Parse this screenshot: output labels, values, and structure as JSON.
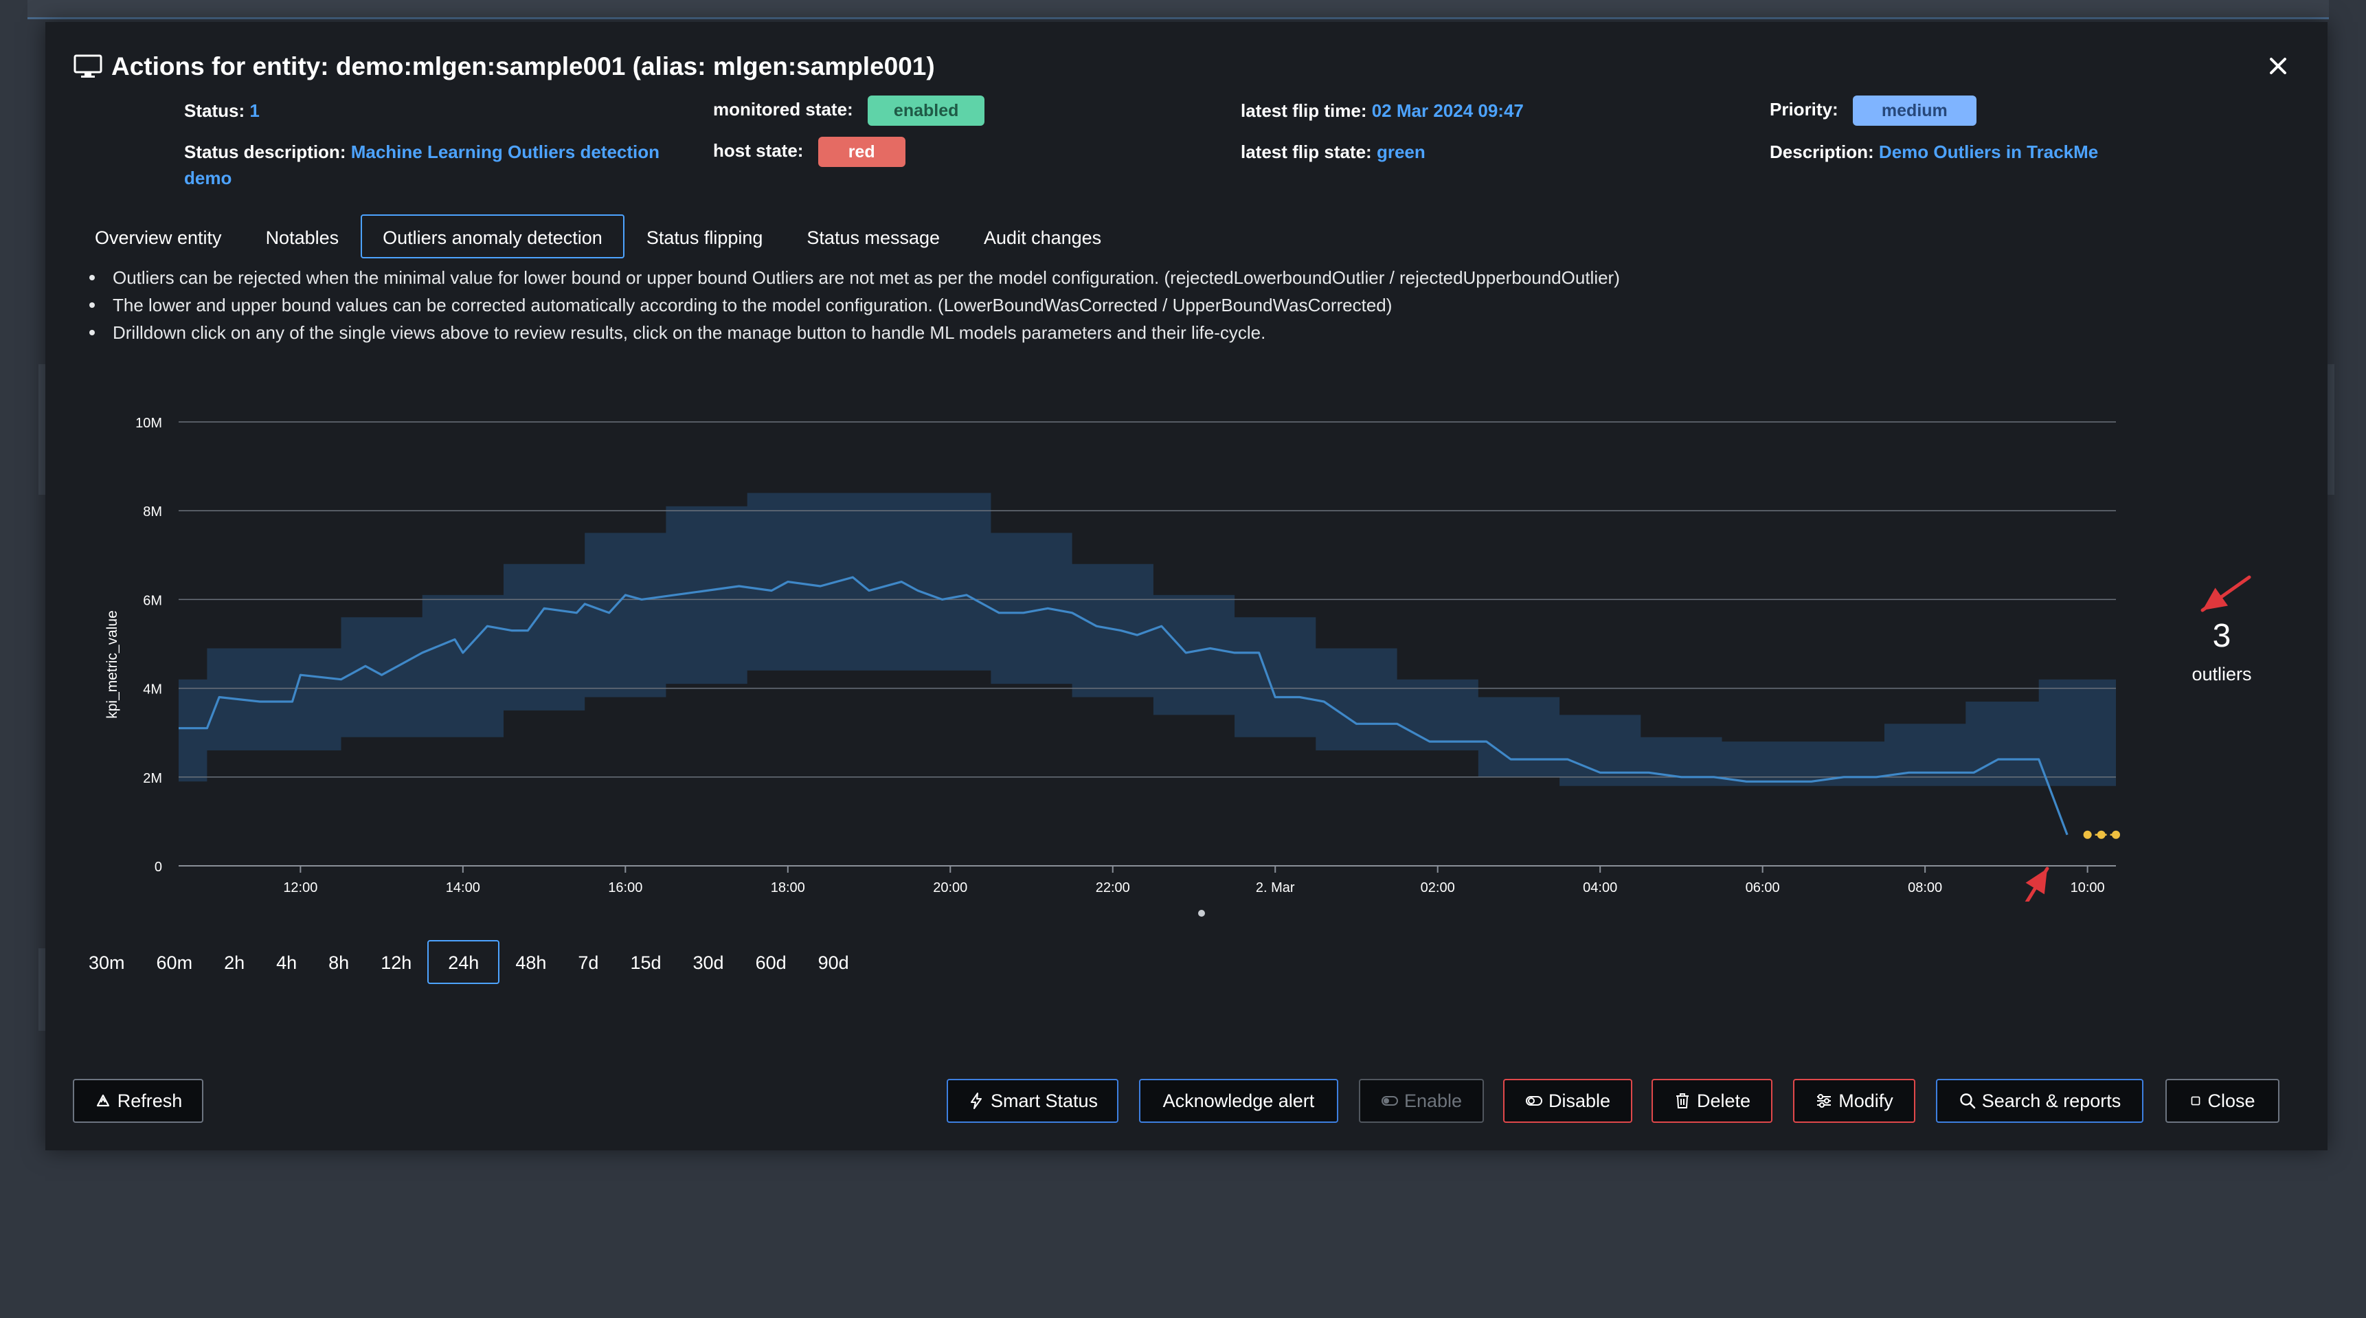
{
  "modal": {
    "title": "Actions for entity: demo:mlgen:sample001 (alias: mlgen:sample001)"
  },
  "info": {
    "status_label": "Status:",
    "status_value": "1",
    "status_desc_label": "Status description:",
    "status_desc_value_1": "Machine Learning Outliers detection",
    "status_desc_value_2": "demo",
    "monitored_label": "monitored state:",
    "monitored_value": "enabled",
    "host_label": "host state:",
    "host_value": "red",
    "flip_time_label": "latest flip time:",
    "flip_time_value": "02 Mar 2024 09:47",
    "flip_state_label": "latest flip state:",
    "flip_state_value": "green",
    "priority_label": "Priority:",
    "priority_value": "medium",
    "description_label": "Description:",
    "description_value": "Demo Outliers in TrackMe"
  },
  "tabs": [
    {
      "label": "Overview entity"
    },
    {
      "label": "Notables"
    },
    {
      "label": "Outliers anomaly detection",
      "active": true
    },
    {
      "label": "Status flipping"
    },
    {
      "label": "Status message"
    },
    {
      "label": "Audit changes"
    }
  ],
  "bullets": [
    "Outliers can be rejected when the minimal value for lower bound or upper bound Outliers are not met as per the model configuration. (rejectedLowerboundOutlier / rejectedUpperboundOutlier)",
    "The lower and upper bound values can be corrected automatically according to the model configuration. (LowerBoundWasCorrected / UpperBoundWasCorrected)",
    "Drilldown click on any of the single views above to review results, click on the manage button to handle ML models parameters and their life-cycle."
  ],
  "outliers": {
    "count": "3",
    "label": "outliers"
  },
  "ranges": [
    {
      "label": "30m"
    },
    {
      "label": "60m"
    },
    {
      "label": "2h"
    },
    {
      "label": "4h"
    },
    {
      "label": "8h"
    },
    {
      "label": "12h"
    },
    {
      "label": "24h",
      "active": true
    },
    {
      "label": "48h"
    },
    {
      "label": "7d"
    },
    {
      "label": "15d"
    },
    {
      "label": "30d"
    },
    {
      "label": "60d"
    },
    {
      "label": "90d"
    }
  ],
  "buttons": {
    "refresh": "Refresh",
    "smart_status": "Smart Status",
    "acknowledge": "Acknowledge alert",
    "enable": "Enable",
    "disable": "Disable",
    "delete": "Delete",
    "modify": "Modify",
    "search": "Search & reports",
    "close": "Close"
  },
  "colors": {
    "band": "#213a53",
    "line": "#3f88c8",
    "outlier": "#f0c040",
    "annotation": "#e0373c"
  },
  "chart_data": {
    "type": "area",
    "ylabel": "kpi_metric_value",
    "ylim": [
      0,
      10000000
    ],
    "y_ticks": [
      {
        "value": 0,
        "label": "0"
      },
      {
        "value": 2000000,
        "label": "2M"
      },
      {
        "value": 4000000,
        "label": "4M"
      },
      {
        "value": 6000000,
        "label": "6M"
      },
      {
        "value": 8000000,
        "label": "8M"
      },
      {
        "value": 10000000,
        "label": "10M"
      }
    ],
    "x_range_hours": [
      10.5,
      10.35
    ],
    "x_ticks": [
      {
        "t": 12,
        "label": "12:00"
      },
      {
        "t": 14,
        "label": "14:00"
      },
      {
        "t": 16,
        "label": "16:00"
      },
      {
        "t": 18,
        "label": "18:00"
      },
      {
        "t": 20,
        "label": "20:00"
      },
      {
        "t": 22,
        "label": "22:00"
      },
      {
        "t": 24,
        "label": "2. Mar"
      },
      {
        "t": 26,
        "label": "02:00"
      },
      {
        "t": 28,
        "label": "04:00"
      },
      {
        "t": 30,
        "label": "06:00"
      },
      {
        "t": 32,
        "label": "08:00"
      },
      {
        "t": 34,
        "label": "10:00"
      }
    ],
    "band": {
      "t": [
        10.5,
        10.85,
        10.85,
        11.75,
        11.75,
        12.5,
        12.5,
        13.5,
        13.5,
        14.5,
        14.5,
        15.5,
        15.5,
        16.5,
        16.5,
        17.5,
        17.5,
        19.5,
        19.5,
        20.5,
        20.5,
        21.5,
        21.5,
        22.5,
        22.5,
        23.5,
        23.5,
        24.5,
        24.5,
        25.5,
        25.5,
        26.5,
        26.5,
        27.5,
        27.5,
        28.5,
        28.5,
        29.5,
        29.5,
        30.5,
        30.5,
        31.5,
        31.5,
        32.5,
        32.5,
        33.4,
        33.4,
        34.35
      ],
      "upper": [
        4200000,
        4200000,
        4900000,
        4900000,
        4900000,
        4900000,
        5600000,
        5600000,
        6100000,
        6100000,
        6800000,
        6800000,
        7500000,
        7500000,
        8100000,
        8100000,
        8400000,
        8400000,
        8400000,
        8400000,
        7500000,
        7500000,
        6800000,
        6800000,
        6100000,
        6100000,
        5600000,
        5600000,
        4900000,
        4900000,
        4200000,
        4200000,
        3800000,
        3800000,
        3400000,
        3400000,
        2900000,
        2900000,
        2800000,
        2800000,
        2800000,
        2800000,
        3200000,
        3200000,
        3700000,
        3700000,
        4200000,
        4200000
      ],
      "lower": [
        1900000,
        1900000,
        2600000,
        2600000,
        2600000,
        2600000,
        2900000,
        2900000,
        2900000,
        2900000,
        3500000,
        3500000,
        3800000,
        3800000,
        4100000,
        4100000,
        4400000,
        4400000,
        4400000,
        4400000,
        4100000,
        4100000,
        3800000,
        3800000,
        3400000,
        3400000,
        2900000,
        2900000,
        2600000,
        2600000,
        2600000,
        2600000,
        2000000,
        2000000,
        1800000,
        1800000,
        1800000,
        1800000,
        1800000,
        1800000,
        1800000,
        1800000,
        1800000,
        1800000,
        1800000,
        1800000,
        1800000,
        1800000
      ]
    },
    "series": [
      {
        "t": [
          10.5,
          10.85,
          11.0,
          11.5,
          11.9,
          12.0,
          12.5,
          12.8,
          13.0,
          13.5,
          13.9,
          14.0,
          14.3,
          14.6,
          14.8,
          15.0,
          15.4,
          15.5,
          15.8,
          16.0,
          16.2,
          16.6,
          17.0,
          17.4,
          17.8,
          18.0,
          18.4,
          18.8,
          19.0,
          19.4,
          19.6,
          19.9,
          20.2,
          20.6,
          20.9,
          21.2,
          21.5,
          21.8,
          22.1,
          22.3,
          22.6,
          22.9,
          23.2,
          23.5,
          23.8,
          24.0,
          24.3,
          24.6,
          25.0,
          25.5,
          25.9,
          26.3,
          26.6,
          26.9,
          27.2,
          27.6,
          28.0,
          28.3,
          28.6,
          29.0,
          29.4,
          29.8,
          30.2,
          30.6,
          31.0,
          31.4,
          31.8,
          32.2,
          32.6,
          32.9,
          33.2,
          33.4,
          33.75
        ],
        "values": [
          3100000,
          3100000,
          3800000,
          3700000,
          3700000,
          4300000,
          4200000,
          4500000,
          4300000,
          4800000,
          5100000,
          4800000,
          5400000,
          5300000,
          5300000,
          5800000,
          5700000,
          5900000,
          5700000,
          6100000,
          6000000,
          6100000,
          6200000,
          6300000,
          6200000,
          6400000,
          6300000,
          6500000,
          6200000,
          6400000,
          6200000,
          6000000,
          6100000,
          5700000,
          5700000,
          5800000,
          5700000,
          5400000,
          5300000,
          5200000,
          5400000,
          4800000,
          4900000,
          4800000,
          4800000,
          3800000,
          3800000,
          3700000,
          3200000,
          3200000,
          2800000,
          2800000,
          2800000,
          2400000,
          2400000,
          2400000,
          2100000,
          2100000,
          2100000,
          2000000,
          2000000,
          1900000,
          1900000,
          1900000,
          2000000,
          2000000,
          2100000,
          2100000,
          2100000,
          2400000,
          2400000,
          2400000,
          700000
        ]
      }
    ],
    "outlier_points": [
      {
        "t": 34.0,
        "value": 700000
      },
      {
        "t": 34.17,
        "value": 700000
      },
      {
        "t": 34.35,
        "value": 700000
      }
    ]
  }
}
